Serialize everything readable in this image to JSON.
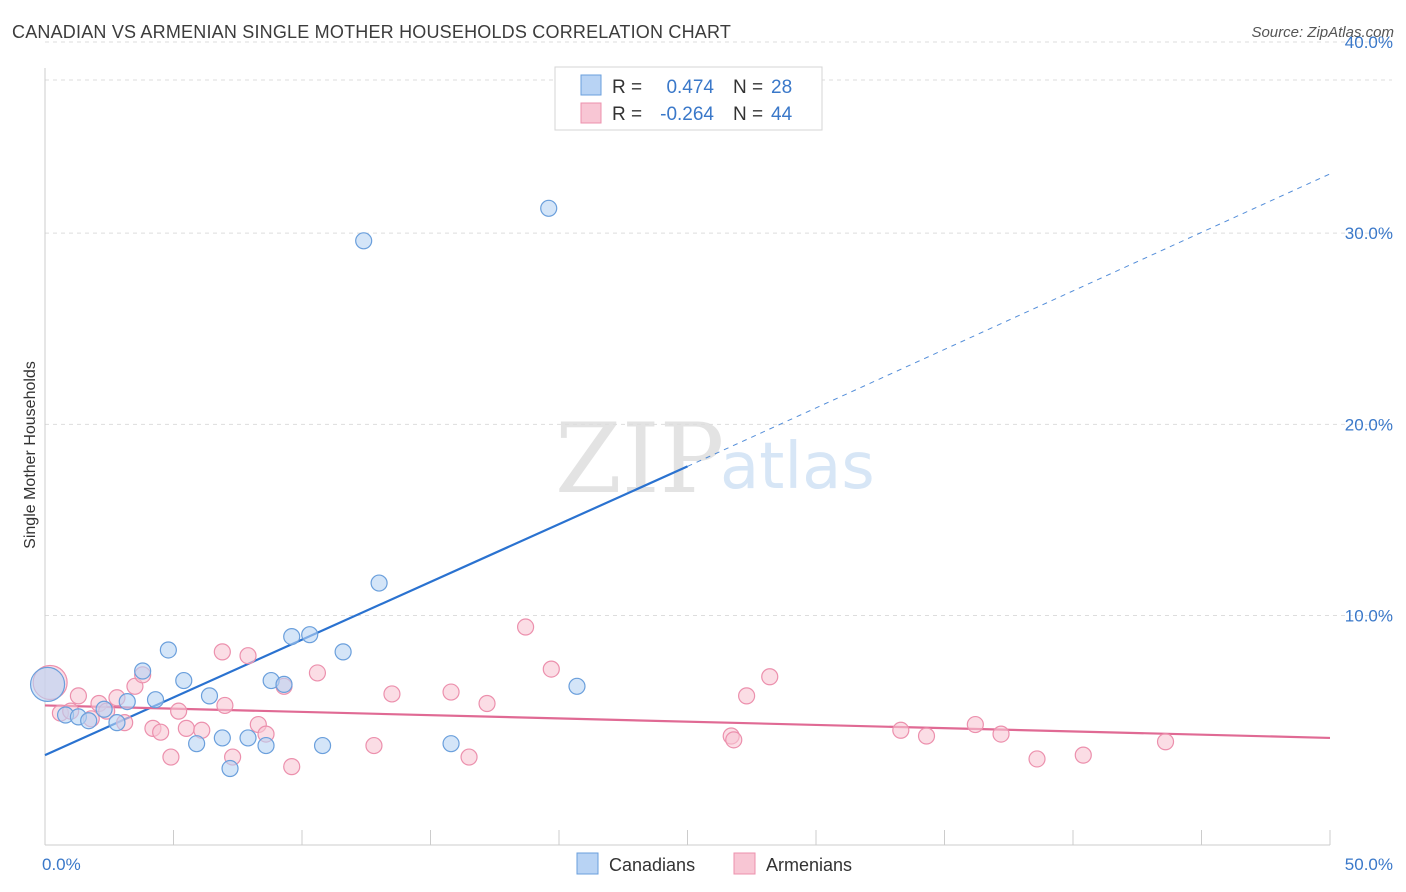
{
  "title": "CANADIAN VS ARMENIAN SINGLE MOTHER HOUSEHOLDS CORRELATION CHART",
  "source": "Source: ZipAtlas.com",
  "watermark": {
    "zip": "ZIP",
    "atlas": "atlas"
  },
  "legend": {
    "rows": [
      {
        "r_label": "R =",
        "r_value": "0.474",
        "n_label": "N =",
        "n_value": "28",
        "color": "#a9c8f0"
      },
      {
        "r_label": "R =",
        "r_value": "-0.264",
        "n_label": "N =",
        "n_value": "44",
        "color": "#f5b8cb"
      }
    ]
  },
  "colors": {
    "canadians_fill": "#b8d3f4",
    "canadians_stroke": "#6a9fdc",
    "canadians_line": "#2a72d0",
    "armenians_fill": "#f8c6d4",
    "armenians_stroke": "#ec90ad",
    "armenians_line": "#e06a94",
    "grid": "#dddddd",
    "axis_text": "#3a78c9"
  },
  "chart_data": {
    "type": "scatter",
    "title": "CANADIAN VS ARMENIAN SINGLE MOTHER HOUSEHOLDS CORRELATION CHART",
    "xlabel": "",
    "ylabel": "Single Mother Households",
    "xlim": [
      0,
      50
    ],
    "ylim": [
      0,
      40
    ],
    "x_tick_labels": [
      {
        "value": 0,
        "label": "0.0%"
      },
      {
        "value": 50,
        "label": "50.0%"
      }
    ],
    "y_tick_labels": [
      {
        "value": 10,
        "label": "10.0%"
      },
      {
        "value": 20,
        "label": "20.0%"
      },
      {
        "value": 30,
        "label": "30.0%"
      },
      {
        "value": 40,
        "label": "40.0%"
      }
    ],
    "legend": [
      "Canadians",
      "Armenians"
    ],
    "series": [
      {
        "name": "Canadians",
        "r": 0.474,
        "n": 28,
        "points": [
          [
            0.1,
            6.4
          ],
          [
            0.8,
            4.8
          ],
          [
            1.3,
            4.7
          ],
          [
            1.7,
            4.5
          ],
          [
            2.3,
            5.1
          ],
          [
            2.8,
            4.4
          ],
          [
            3.2,
            5.5
          ],
          [
            3.8,
            7.1
          ],
          [
            4.3,
            5.6
          ],
          [
            4.8,
            8.2
          ],
          [
            5.4,
            6.6
          ],
          [
            5.9,
            3.3
          ],
          [
            6.4,
            5.8
          ],
          [
            6.9,
            3.6
          ],
          [
            7.2,
            2.0
          ],
          [
            7.9,
            3.6
          ],
          [
            8.6,
            3.2
          ],
          [
            8.8,
            6.6
          ],
          [
            9.3,
            6.4
          ],
          [
            9.6,
            8.9
          ],
          [
            10.3,
            9.0
          ],
          [
            10.8,
            3.2
          ],
          [
            11.6,
            8.1
          ],
          [
            12.4,
            29.6
          ],
          [
            13.0,
            11.7
          ],
          [
            15.8,
            3.3
          ],
          [
            19.6,
            31.3
          ],
          [
            20.7,
            6.3
          ]
        ],
        "trend": {
          "x0": 0,
          "y0": 2.7,
          "x1": 25,
          "y1": 17.8,
          "dashed_to_x": 50,
          "dashed_to_y": 33.1
        }
      },
      {
        "name": "Armenians",
        "r": -0.264,
        "n": 44,
        "points": [
          [
            0.2,
            6.5
          ],
          [
            0.6,
            4.9
          ],
          [
            1.0,
            5.0
          ],
          [
            1.3,
            5.8
          ],
          [
            1.8,
            4.6
          ],
          [
            2.1,
            5.4
          ],
          [
            2.4,
            5.0
          ],
          [
            2.8,
            5.7
          ],
          [
            3.1,
            4.4
          ],
          [
            3.5,
            6.3
          ],
          [
            3.8,
            6.9
          ],
          [
            4.2,
            4.1
          ],
          [
            4.5,
            3.9
          ],
          [
            4.9,
            2.6
          ],
          [
            5.2,
            5.0
          ],
          [
            5.5,
            4.1
          ],
          [
            6.1,
            4.0
          ],
          [
            6.9,
            8.1
          ],
          [
            7.0,
            5.3
          ],
          [
            7.3,
            2.6
          ],
          [
            7.9,
            7.9
          ],
          [
            8.3,
            4.3
          ],
          [
            8.6,
            3.8
          ],
          [
            9.3,
            6.3
          ],
          [
            9.6,
            2.1
          ],
          [
            10.6,
            7.0
          ],
          [
            12.8,
            3.2
          ],
          [
            13.5,
            5.9
          ],
          [
            15.8,
            6.0
          ],
          [
            16.5,
            2.6
          ],
          [
            17.2,
            5.4
          ],
          [
            18.7,
            9.4
          ],
          [
            19.7,
            7.2
          ],
          [
            26.7,
            3.7
          ],
          [
            27.3,
            5.8
          ],
          [
            28.2,
            6.8
          ],
          [
            33.3,
            4.0
          ],
          [
            34.3,
            3.7
          ],
          [
            36.2,
            4.3
          ],
          [
            37.2,
            3.8
          ],
          [
            38.6,
            2.5
          ],
          [
            40.4,
            2.7
          ],
          [
            43.6,
            3.4
          ],
          [
            26.8,
            3.5
          ]
        ],
        "trend": {
          "x0": 0,
          "y0": 5.3,
          "x1": 50,
          "y1": 3.6
        }
      }
    ]
  }
}
